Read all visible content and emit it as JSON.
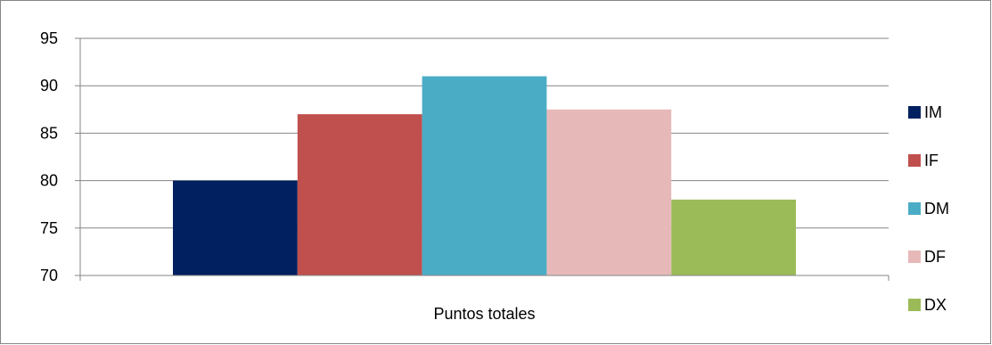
{
  "chart_data": {
    "type": "bar",
    "categories": [
      "Puntos totales"
    ],
    "series": [
      {
        "name": "IM",
        "values": [
          80
        ],
        "color": "#002060"
      },
      {
        "name": "IF",
        "values": [
          87
        ],
        "color": "#C0504D"
      },
      {
        "name": "DM",
        "values": [
          91
        ],
        "color": "#4BACC6"
      },
      {
        "name": "DF",
        "values": [
          87.5
        ],
        "color": "#E6B9B8"
      },
      {
        "name": "DX",
        "values": [
          78
        ],
        "color": "#9BBB59"
      }
    ],
    "title": "",
    "xlabel": "",
    "ylabel": "",
    "ylim": [
      70,
      95
    ],
    "yticks": [
      "70",
      "75",
      "80",
      "85",
      "90",
      "95"
    ],
    "grid": true,
    "legend": "right"
  }
}
